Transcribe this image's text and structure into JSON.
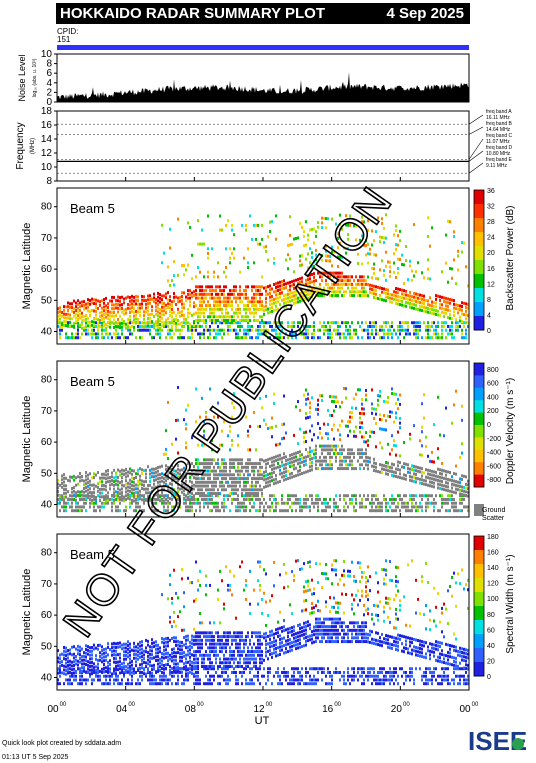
{
  "header": {
    "title": "HOKKAIDO RADAR SUMMARY PLOT",
    "date": "4 Sep 2025"
  },
  "cpid": {
    "label": "CPID:",
    "value": "151"
  },
  "watermark": "NOT FOR PUBLICATION",
  "footer": {
    "line1": "Quick look plot created by sddata.adm",
    "line2": "01:13 UT  5 Sep 2025"
  },
  "logo": {
    "text": "ISEE"
  },
  "colors": {
    "cpid_bar": "#3030ff",
    "ground_scatter": "#808080",
    "noise": "#000000"
  },
  "chart_data": [
    {
      "type": "area",
      "name": "noise",
      "ylabel": "Noise Level",
      "ylabel_sub": "log₁₀ (abs. u. 10³)",
      "ylim": [
        0,
        10
      ],
      "yticks": [
        0,
        2,
        4,
        6,
        8,
        10
      ],
      "x": [
        0,
        1,
        2,
        3,
        4,
        5,
        6,
        7,
        8,
        9,
        10,
        11,
        12,
        13,
        14,
        15,
        16,
        17,
        18,
        19,
        20,
        21,
        22,
        23,
        24
      ],
      "values": [
        1.0,
        1.2,
        1.4,
        1.6,
        2.0,
        2.2,
        2.6,
        2.8,
        2.9,
        3.0,
        3.0,
        2.8,
        2.4,
        2.2,
        2.4,
        2.6,
        3.0,
        3.2,
        3.2,
        3.0,
        2.9,
        3.0,
        3.2,
        3.4,
        3.6
      ]
    },
    {
      "type": "line",
      "name": "frequency",
      "ylabel": "Frequency",
      "ylabel_sub": "(MHz)",
      "ylim": [
        8,
        18
      ],
      "yticks": [
        8,
        10,
        12,
        14,
        16,
        18
      ],
      "bands": [
        {
          "label": "freq band A",
          "freq": "16.11 MHz",
          "value": 16.11
        },
        {
          "label": "freq band B",
          "freq": "14.64 MHz",
          "value": 14.64
        },
        {
          "label": "freq band C",
          "freq": "11.07 MHz",
          "value": 11.07
        },
        {
          "label": "freq band D",
          "freq": "10.80 MHz",
          "value": 10.8
        },
        {
          "label": "freq band E",
          "freq": "9.11 MHz",
          "value": 9.11
        }
      ],
      "series_value": 10.8
    },
    {
      "type": "heatmap",
      "name": "power",
      "beam_label": "Beam  5",
      "ylabel": "Magnetic Latitude",
      "ylim": [
        36,
        86
      ],
      "yticks": [
        40,
        50,
        60,
        70,
        80
      ],
      "colorbar_label": "Backscatter Power (dB)",
      "colorbar_ticks": [
        "0",
        "4",
        "8",
        "12",
        "16",
        "20",
        "24",
        "28",
        "32",
        "36"
      ],
      "colorbar_colors": [
        "#2020e0",
        "#00a0ff",
        "#00e0e0",
        "#00c000",
        "#80e000",
        "#e0e000",
        "#ffc000",
        "#ff8000",
        "#ff3000",
        "#e00000"
      ]
    },
    {
      "type": "heatmap",
      "name": "velocity",
      "beam_label": "Beam  5",
      "ylabel": "Magnetic Latitude",
      "ylim": [
        36,
        86
      ],
      "yticks": [
        40,
        50,
        60,
        70,
        80
      ],
      "colorbar_label": "Doppler Velocity (m s⁻¹)",
      "colorbar_ticks": [
        "800",
        "600",
        "400",
        "200",
        "0",
        "-200",
        "-400",
        "-600",
        "-800"
      ],
      "colorbar_colors": [
        "#2020e0",
        "#3060ff",
        "#00a0ff",
        "#00e0e0",
        "#00c000",
        "#80e000",
        "#e0e000",
        "#ffc000",
        "#ff8000",
        "#e00000"
      ],
      "ground_label": "Ground",
      "ground_label2": "Scatter"
    },
    {
      "type": "heatmap",
      "name": "width",
      "beam_label": "Beam  5",
      "ylabel": "Magnetic Latitude",
      "ylim": [
        36,
        86
      ],
      "yticks": [
        40,
        50,
        60,
        70,
        80
      ],
      "colorbar_label": "Spectral Width (m s⁻¹)",
      "colorbar_ticks": [
        "0",
        "20",
        "40",
        "60",
        "80",
        "100",
        "120",
        "140",
        "160",
        "180"
      ],
      "colorbar_colors": [
        "#2020e0",
        "#3060ff",
        "#00a0ff",
        "#00e0e0",
        "#00c000",
        "#80e000",
        "#e0e000",
        "#ffc000",
        "#ff8000",
        "#e00000"
      ]
    }
  ],
  "xaxis": {
    "label": "UT",
    "ticks": [
      {
        "h": "00",
        "m": "00",
        "value": 0
      },
      {
        "h": "04",
        "m": "00",
        "value": 4
      },
      {
        "h": "08",
        "m": "00",
        "value": 8
      },
      {
        "h": "12",
        "m": "00",
        "value": 12
      },
      {
        "h": "16",
        "m": "00",
        "value": 16
      },
      {
        "h": "20",
        "m": "00",
        "value": 20
      },
      {
        "h": "00",
        "m": "00",
        "value": 24
      }
    ],
    "range": [
      0,
      24
    ]
  }
}
